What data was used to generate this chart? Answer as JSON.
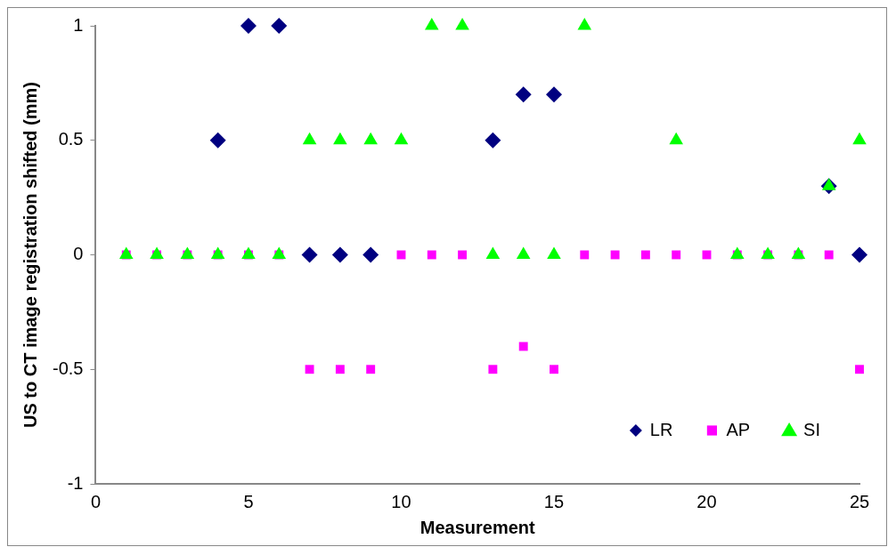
{
  "chart_data": {
    "type": "scatter",
    "xlabel": "Measurement",
    "ylabel": "US to CT image registration shifted (mm)",
    "x": [
      1,
      2,
      3,
      4,
      5,
      6,
      7,
      8,
      9,
      10,
      11,
      12,
      13,
      14,
      15,
      16,
      17,
      18,
      19,
      20,
      21,
      22,
      23,
      24,
      25
    ],
    "xlim": [
      0,
      25
    ],
    "xticks": [
      0,
      5,
      10,
      15,
      20,
      25
    ],
    "ylim": [
      -1,
      1
    ],
    "yticks": [
      -1,
      -0.5,
      0,
      0.5,
      1
    ],
    "grid": false,
    "legend": "bottom right",
    "series": [
      {
        "name": "LR",
        "color": "#000080",
        "marker": "diamond",
        "values": [
          null,
          null,
          null,
          0.5,
          1,
          1,
          0,
          0,
          0,
          null,
          null,
          null,
          0.5,
          0.7,
          0.7,
          null,
          null,
          null,
          null,
          null,
          null,
          null,
          null,
          0.3,
          0
        ]
      },
      {
        "name": "AP",
        "color": "#ff00ff",
        "marker": "square",
        "values": [
          0,
          0,
          0,
          0,
          0,
          0,
          -0.5,
          -0.5,
          -0.5,
          0,
          0,
          0,
          -0.5,
          -0.4,
          -0.5,
          0,
          0,
          0,
          0,
          0,
          0,
          0,
          0,
          0,
          -0.5
        ]
      },
      {
        "name": "SI",
        "color": "#00ff00",
        "marker": "triangle",
        "values": [
          0,
          0,
          0,
          0,
          0,
          0,
          0.5,
          0.5,
          0.5,
          0.5,
          1,
          1,
          0,
          0,
          0,
          1,
          null,
          null,
          0.5,
          null,
          0,
          0,
          0,
          0.3,
          0.5
        ]
      }
    ]
  }
}
